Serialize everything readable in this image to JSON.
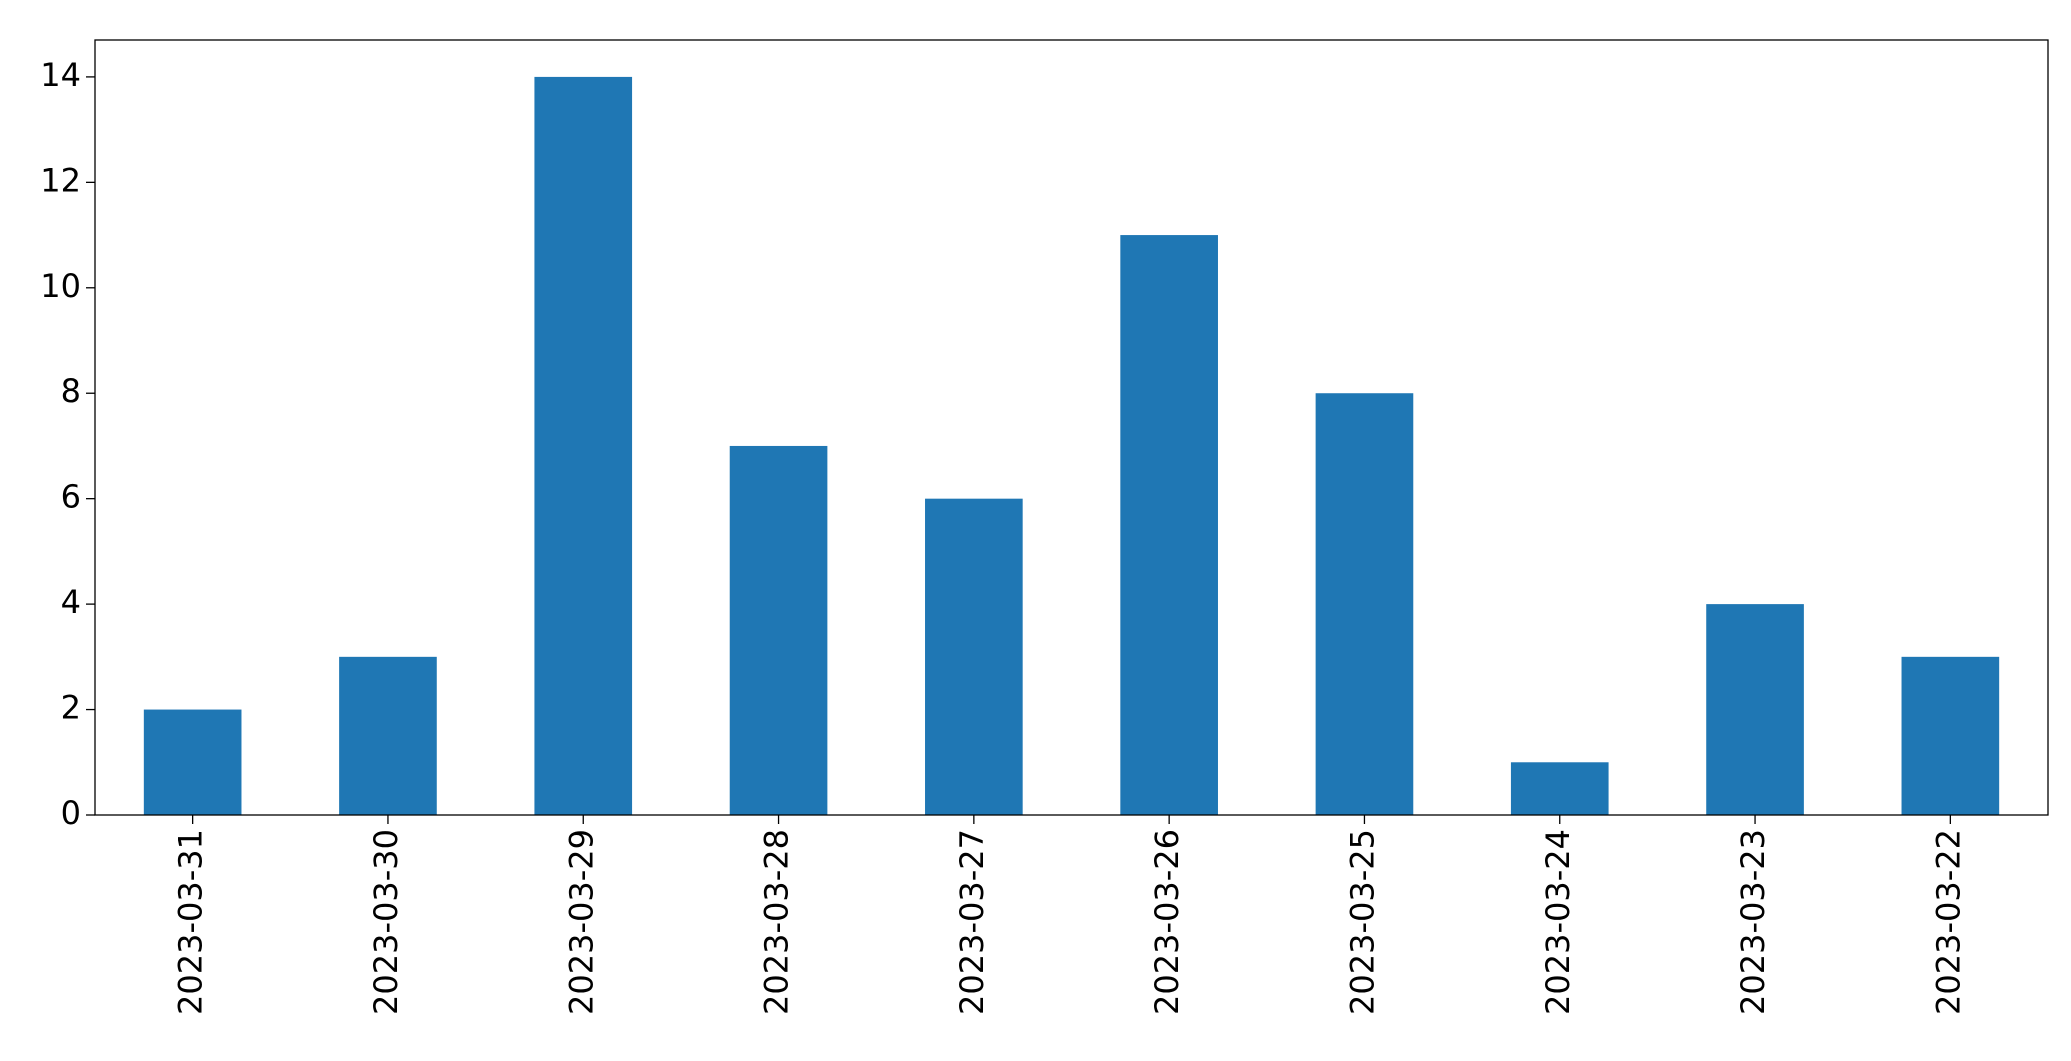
{
  "chart_data": {
    "type": "bar",
    "categories": [
      "2023-03-31",
      "2023-03-30",
      "2023-03-29",
      "2023-03-28",
      "2023-03-27",
      "2023-03-26",
      "2023-03-25",
      "2023-03-24",
      "2023-03-23",
      "2023-03-22"
    ],
    "values": [
      2,
      3,
      14,
      7,
      6,
      11,
      8,
      1,
      4,
      3
    ],
    "color": "#1f77b4",
    "ylim": [
      0,
      14.7
    ],
    "yticks": [
      0,
      2,
      4,
      6,
      8,
      10,
      12,
      14
    ],
    "grid": false
  }
}
